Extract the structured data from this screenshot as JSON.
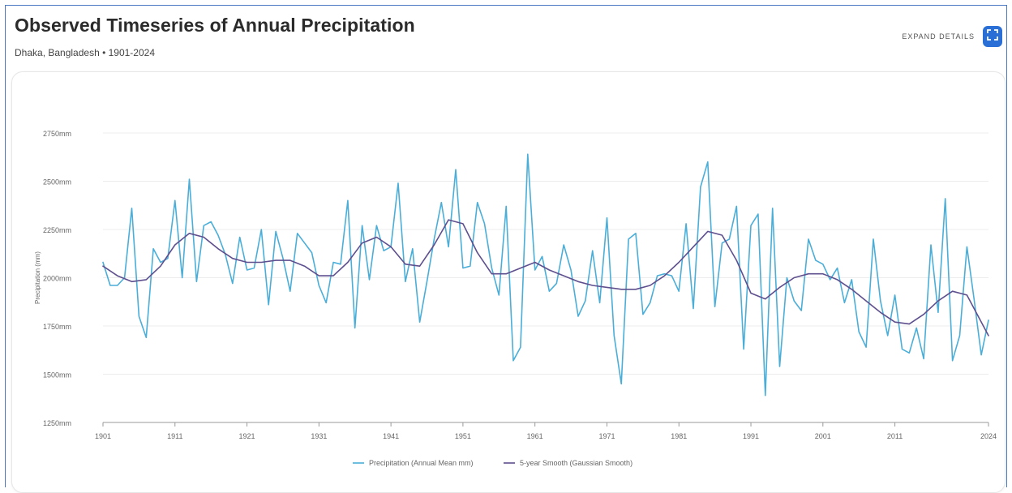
{
  "header": {
    "title": "Observed Timeseries of Annual Precipitation",
    "subtitle": "Dhaka, Bangladesh • 1901-2024",
    "expand_label": "EXPAND DETAILS",
    "expand_icon": "expand-icon",
    "accent_color": "#2a6fd6"
  },
  "chart_data": {
    "type": "line",
    "ylabel": "Precipitation (mm)",
    "xlabel": "",
    "ylim": [
      1250,
      2750
    ],
    "yticks": [
      1250,
      1500,
      1750,
      2000,
      2250,
      2500,
      2750
    ],
    "ytick_labels": [
      "1250mm",
      "1500mm",
      "1750mm",
      "2000mm",
      "2250mm",
      "2500mm",
      "2750mm"
    ],
    "xlim": [
      1901,
      2024
    ],
    "xticks": [
      1901,
      1911,
      1921,
      1931,
      1941,
      1951,
      1961,
      1971,
      1981,
      1991,
      2001,
      2011,
      2024
    ],
    "xtick_labels": [
      "1901",
      "1911",
      "1921",
      "1931",
      "1941",
      "1951",
      "1961",
      "1971",
      "1981",
      "1991",
      "2001",
      "2011",
      "2024"
    ],
    "grid": true,
    "legend_position": "bottom-center",
    "series": [
      {
        "name": "Precipitation (Annual Mean mm)",
        "color": "#4aaed8",
        "x": [
          1901,
          1902,
          1903,
          1904,
          1905,
          1906,
          1907,
          1908,
          1909,
          1910,
          1911,
          1912,
          1913,
          1914,
          1915,
          1916,
          1917,
          1918,
          1919,
          1920,
          1921,
          1922,
          1923,
          1924,
          1925,
          1926,
          1927,
          1928,
          1929,
          1930,
          1931,
          1932,
          1933,
          1934,
          1935,
          1936,
          1937,
          1938,
          1939,
          1940,
          1941,
          1942,
          1943,
          1944,
          1945,
          1946,
          1947,
          1948,
          1949,
          1950,
          1951,
          1952,
          1953,
          1954,
          1955,
          1956,
          1957,
          1958,
          1959,
          1960,
          1961,
          1962,
          1963,
          1964,
          1965,
          1966,
          1967,
          1968,
          1969,
          1970,
          1971,
          1972,
          1973,
          1974,
          1975,
          1976,
          1977,
          1978,
          1979,
          1980,
          1981,
          1982,
          1983,
          1984,
          1985,
          1986,
          1987,
          1988,
          1989,
          1990,
          1991,
          1992,
          1993,
          1994,
          1995,
          1996,
          1997,
          1998,
          1999,
          2000,
          2001,
          2002,
          2003,
          2004,
          2005,
          2006,
          2007,
          2008,
          2009,
          2010,
          2011,
          2012,
          2013,
          2014,
          2015,
          2016,
          2017,
          2018,
          2019,
          2020,
          2021,
          2022,
          2023,
          2024
        ],
        "values": [
          2080,
          1960,
          1960,
          2000,
          2360,
          1800,
          1690,
          2150,
          2080,
          2100,
          2400,
          2000,
          2510,
          1980,
          2270,
          2290,
          2220,
          2120,
          1970,
          2210,
          2040,
          2050,
          2250,
          1860,
          2240,
          2100,
          1930,
          2230,
          2180,
          2130,
          1960,
          1870,
          2080,
          2070,
          2400,
          1740,
          2270,
          1990,
          2270,
          2140,
          2160,
          2490,
          1980,
          2150,
          1770,
          1980,
          2200,
          2390,
          2160,
          2560,
          2050,
          2060,
          2390,
          2280,
          2050,
          1910,
          2370,
          1570,
          1640,
          2640,
          2040,
          2110,
          1930,
          1970,
          2170,
          2040,
          1800,
          1880,
          2140,
          1870,
          2310,
          1700,
          1450,
          2200,
          2230,
          1810,
          1870,
          2010,
          2020,
          2010,
          1930,
          2280,
          1840,
          2470,
          2600,
          1850,
          2180,
          2200,
          2370,
          1630,
          2270,
          2330,
          1390,
          2360,
          1540,
          2000,
          1880,
          1830,
          2200,
          2090,
          2070,
          1990,
          2050,
          1870,
          1990,
          1720,
          1640,
          2200,
          1880,
          1700,
          1910,
          1630,
          1610,
          1740,
          1580,
          2170,
          1820,
          2410,
          1570,
          1700,
          2160,
          1890,
          1600,
          1780
        ]
      },
      {
        "name": "5-year Smooth (Gaussian Smooth)",
        "color": "#5e4f8e",
        "x": [
          1901,
          1903,
          1905,
          1907,
          1909,
          1911,
          1913,
          1915,
          1917,
          1919,
          1921,
          1923,
          1925,
          1927,
          1929,
          1931,
          1933,
          1935,
          1937,
          1939,
          1941,
          1943,
          1945,
          1947,
          1949,
          1951,
          1953,
          1955,
          1957,
          1959,
          1961,
          1963,
          1965,
          1967,
          1969,
          1971,
          1973,
          1975,
          1977,
          1979,
          1981,
          1983,
          1985,
          1987,
          1989,
          1991,
          1993,
          1995,
          1997,
          1999,
          2001,
          2003,
          2005,
          2007,
          2009,
          2011,
          2013,
          2015,
          2017,
          2019,
          2021,
          2024
        ],
        "values": [
          2060,
          2010,
          1980,
          1990,
          2060,
          2170,
          2230,
          2210,
          2150,
          2100,
          2080,
          2080,
          2090,
          2090,
          2060,
          2010,
          2010,
          2080,
          2180,
          2210,
          2160,
          2070,
          2060,
          2170,
          2300,
          2280,
          2130,
          2020,
          2020,
          2050,
          2080,
          2040,
          2010,
          1980,
          1960,
          1950,
          1940,
          1940,
          1960,
          2010,
          2080,
          2160,
          2240,
          2220,
          2090,
          1920,
          1890,
          1950,
          2000,
          2020,
          2020,
          1990,
          1940,
          1880,
          1820,
          1770,
          1760,
          1810,
          1880,
          1930,
          1910,
          1700
        ]
      }
    ]
  }
}
